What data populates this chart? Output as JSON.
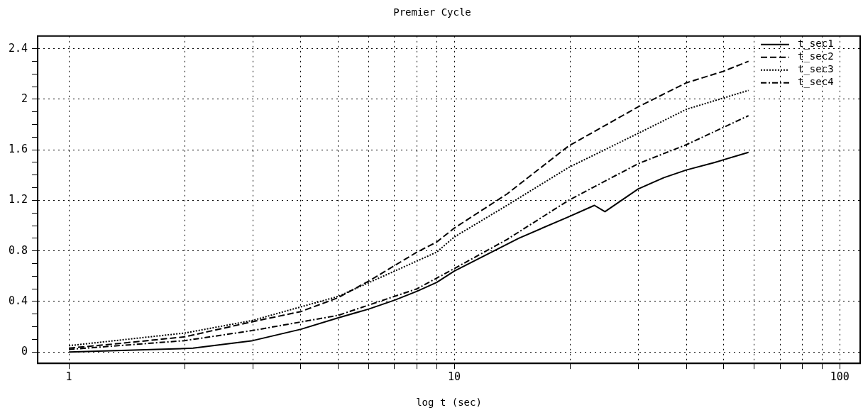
{
  "chart_data": {
    "type": "line",
    "title": "Premier Cycle",
    "xlabel": "log t (sec)",
    "log": "x",
    "grid": true,
    "legend": "top right",
    "marker": "none",
    "xlim": [
      0.83,
      113
    ],
    "ylim": [
      -0.09,
      2.5
    ],
    "xticks": [
      1,
      {
        "value": 2,
        "label": null
      },
      {
        "value": 3,
        "label": null
      },
      {
        "value": 4,
        "label": null
      },
      {
        "value": 5,
        "label": null
      },
      {
        "value": 6,
        "label": null
      },
      {
        "value": 7,
        "label": null
      },
      {
        "value": 8,
        "label": null
      },
      {
        "value": 9,
        "label": null
      },
      10,
      {
        "value": 20,
        "label": null
      },
      {
        "value": 30,
        "label": null
      },
      {
        "value": 40,
        "label": null
      },
      {
        "value": 50,
        "label": null
      },
      {
        "value": 60,
        "label": null
      },
      {
        "value": 70,
        "label": null
      },
      {
        "value": 80,
        "label": null
      },
      {
        "value": 90,
        "label": null
      },
      100
    ],
    "yticks": [
      0,
      {
        "value": 0.1,
        "label": null
      },
      {
        "value": 0.2,
        "label": null
      },
      {
        "value": 0.3,
        "label": null
      },
      0.4,
      {
        "value": 0.5,
        "label": null
      },
      {
        "value": 0.6,
        "label": null
      },
      {
        "value": 0.7,
        "label": null
      },
      0.8,
      {
        "value": 0.9,
        "label": null
      },
      {
        "value": 1.0,
        "label": null
      },
      {
        "value": 1.1,
        "label": null
      },
      1.2,
      {
        "value": 1.3,
        "label": null
      },
      {
        "value": 1.4,
        "label": null
      },
      {
        "value": 1.5,
        "label": null
      },
      1.6,
      {
        "value": 1.7,
        "label": null
      },
      {
        "value": 1.8,
        "label": null
      },
      {
        "value": 1.9,
        "label": null
      },
      2,
      {
        "value": 2.1,
        "label": null
      },
      {
        "value": 2.2,
        "label": null
      },
      {
        "value": 2.3,
        "label": null
      },
      2.4
    ],
    "series": [
      {
        "name": "t_sec1",
        "color": "#000000",
        "line_style": "solid",
        "x": [
          1,
          1.69,
          2.1,
          3,
          4,
          5,
          6,
          7,
          8,
          9,
          10,
          14.7,
          19.8,
          23.1,
          24.6,
          30,
          35,
          40,
          47.4,
          58
        ],
        "values": [
          0,
          0.02,
          0.03,
          0.09,
          0.18,
          0.27,
          0.34,
          0.41,
          0.48,
          0.55,
          0.64,
          0.9,
          1.07,
          1.16,
          1.11,
          1.29,
          1.38,
          1.44,
          1.5,
          1.58
        ]
      },
      {
        "name": "t_sec2",
        "color": "#000000",
        "line_style": "dashed",
        "x": [
          1,
          1.38,
          2,
          3,
          4,
          5,
          6.07,
          8,
          9,
          10,
          13.7,
          19.8,
          30,
          40,
          49.8,
          58
        ],
        "values": [
          0.03,
          0.07,
          0.12,
          0.24,
          0.32,
          0.43,
          0.57,
          0.79,
          0.87,
          0.98,
          1.25,
          1.63,
          1.94,
          2.13,
          2.22,
          2.3
        ]
      },
      {
        "name": "t_sec3",
        "color": "#000000",
        "line_style": "dotted",
        "x": [
          1,
          2,
          3,
          5,
          7,
          9,
          10,
          13.7,
          19.8,
          30,
          40,
          58
        ],
        "values": [
          0.05,
          0.15,
          0.25,
          0.44,
          0.64,
          0.79,
          0.91,
          1.16,
          1.46,
          1.73,
          1.92,
          2.07
        ]
      },
      {
        "name": "t_sec4",
        "color": "#000000",
        "line_style": "dashdot",
        "x": [
          1,
          2,
          3,
          5,
          8,
          10,
          13.7,
          19.8,
          30,
          40,
          58
        ],
        "values": [
          0.02,
          0.09,
          0.17,
          0.29,
          0.5,
          0.66,
          0.89,
          1.2,
          1.49,
          1.64,
          1.87
        ]
      }
    ]
  }
}
